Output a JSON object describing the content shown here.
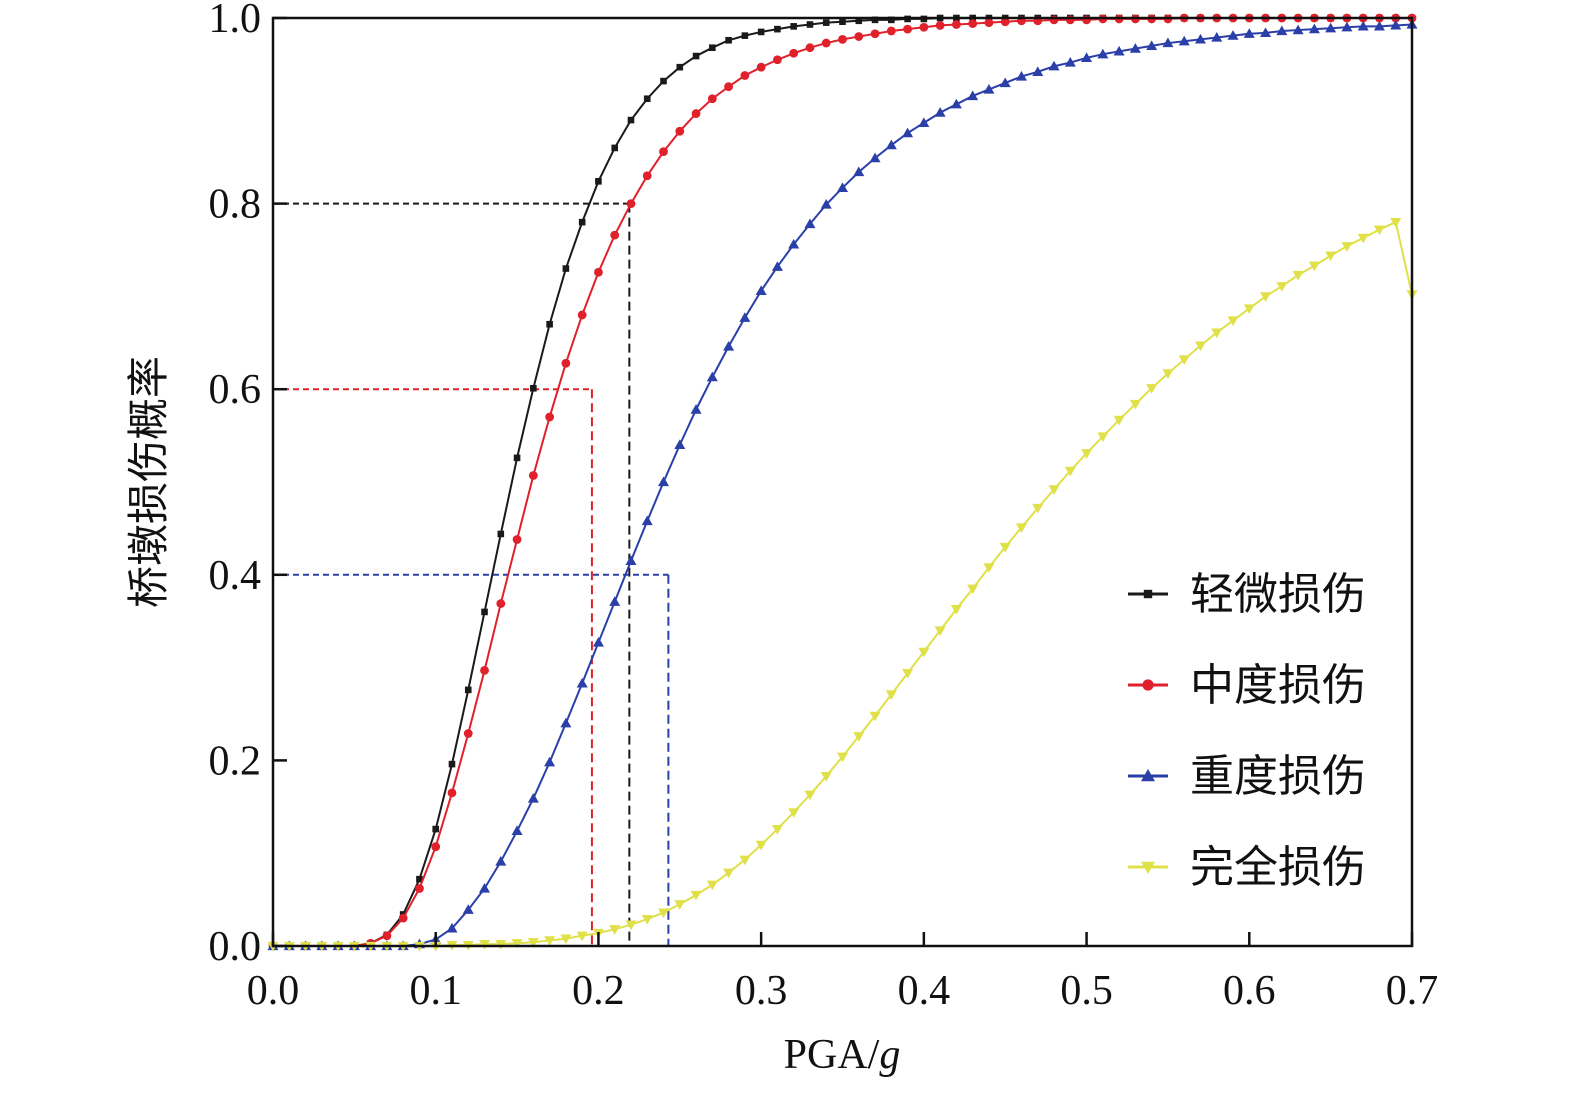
{
  "chart_data": {
    "type": "line",
    "xlabel": "PGA/g",
    "xlabel_main": "PGA/",
    "xlabel_italic": "g",
    "ylabel": "桥墩损伤概率",
    "xlim": [
      0,
      0.7
    ],
    "ylim": [
      0,
      1
    ],
    "xticks": [
      "0.0",
      "0.1",
      "0.2",
      "0.3",
      "0.4",
      "0.5",
      "0.6",
      "0.7"
    ],
    "yticks": [
      "0.0",
      "0.2",
      "0.4",
      "0.6",
      "0.8",
      "1.0"
    ],
    "legend_position": "bottom-right",
    "x_step": 0.01,
    "series": [
      {
        "name": "轻微损伤",
        "color": "#1a1a1a",
        "marker": "square",
        "values": [
          0.0,
          0.0,
          0.0,
          0.0,
          0.0,
          0.0,
          0.003,
          0.012,
          0.034,
          0.072,
          0.126,
          0.196,
          0.276,
          0.36,
          0.444,
          0.526,
          0.601,
          0.67,
          0.73,
          0.78,
          0.824,
          0.86,
          0.89,
          0.913,
          0.932,
          0.947,
          0.959,
          0.968,
          0.976,
          0.981,
          0.985,
          0.988,
          0.991,
          0.993,
          0.995,
          0.996,
          0.997,
          0.998,
          0.998,
          0.999,
          0.999,
          1.0,
          1.0,
          1.0,
          1.0,
          1.0,
          1.0,
          1.0,
          1.0,
          1.0,
          1.0,
          1.0,
          1.0,
          1.0,
          1.0,
          1.0,
          1.0,
          1.0,
          1.0,
          1.0,
          1.0,
          1.0,
          1.0,
          1.0,
          1.0,
          1.0,
          1.0,
          1.0,
          1.0,
          1.0,
          1.0
        ]
      },
      {
        "name": "中度损伤",
        "color": "#e0202a",
        "marker": "circle",
        "values": [
          0.0,
          0.0,
          0.0,
          0.0,
          0.0,
          0.0,
          0.003,
          0.011,
          0.03,
          0.062,
          0.107,
          0.165,
          0.229,
          0.297,
          0.369,
          0.438,
          0.507,
          0.57,
          0.628,
          0.68,
          0.726,
          0.766,
          0.8,
          0.83,
          0.856,
          0.878,
          0.897,
          0.913,
          0.926,
          0.938,
          0.947,
          0.955,
          0.962,
          0.968,
          0.973,
          0.977,
          0.98,
          0.983,
          0.986,
          0.988,
          0.99,
          0.992,
          0.993,
          0.994,
          0.995,
          0.996,
          0.997,
          0.997,
          0.998,
          0.998,
          0.998,
          0.999,
          0.999,
          0.999,
          0.999,
          0.999,
          1.0,
          1.0,
          1.0,
          1.0,
          1.0,
          1.0,
          1.0,
          1.0,
          1.0,
          1.0,
          1.0,
          1.0,
          1.0,
          1.0,
          1.0
        ]
      },
      {
        "name": "重度损伤",
        "color": "#2b3fa8",
        "marker": "triangle-up",
        "values": [
          0.0,
          0.0,
          0.0,
          0.0,
          0.0,
          0.0,
          0.0,
          0.0,
          0.0,
          0.002,
          0.007,
          0.019,
          0.039,
          0.062,
          0.091,
          0.124,
          0.159,
          0.198,
          0.24,
          0.283,
          0.327,
          0.371,
          0.415,
          0.458,
          0.5,
          0.54,
          0.578,
          0.613,
          0.646,
          0.677,
          0.706,
          0.732,
          0.756,
          0.778,
          0.799,
          0.817,
          0.834,
          0.849,
          0.863,
          0.876,
          0.887,
          0.898,
          0.907,
          0.916,
          0.923,
          0.93,
          0.937,
          0.942,
          0.948,
          0.952,
          0.957,
          0.961,
          0.964,
          0.967,
          0.97,
          0.973,
          0.975,
          0.977,
          0.979,
          0.981,
          0.983,
          0.984,
          0.986,
          0.987,
          0.988,
          0.989,
          0.99,
          0.991,
          0.991,
          0.992,
          0.993
        ]
      },
      {
        "name": "完全损伤",
        "color": "#e0e048",
        "marker": "triangle-down",
        "values": [
          0.0,
          0.0,
          0.0,
          0.0,
          0.0,
          0.0,
          0.0,
          0.0,
          0.0,
          0.0,
          0.0,
          0.001,
          0.001,
          0.002,
          0.002,
          0.003,
          0.004,
          0.006,
          0.008,
          0.011,
          0.014,
          0.018,
          0.023,
          0.029,
          0.036,
          0.045,
          0.055,
          0.066,
          0.079,
          0.093,
          0.109,
          0.126,
          0.144,
          0.163,
          0.183,
          0.204,
          0.226,
          0.248,
          0.271,
          0.294,
          0.317,
          0.34,
          0.363,
          0.385,
          0.408,
          0.43,
          0.451,
          0.472,
          0.492,
          0.512,
          0.531,
          0.549,
          0.567,
          0.584,
          0.601,
          0.617,
          0.632,
          0.647,
          0.661,
          0.674,
          0.687,
          0.7,
          0.711,
          0.723,
          0.733,
          0.744,
          0.754,
          0.763,
          0.772,
          0.78,
          0.702
        ]
      }
    ],
    "reference_lines": [
      {
        "y": 0.8,
        "x": 0.219,
        "color": "#1a1a1a"
      },
      {
        "y": 0.6,
        "x": 0.196,
        "color": "#e0202a"
      },
      {
        "y": 0.4,
        "x": 0.243,
        "color": "#2b3fa8"
      }
    ]
  }
}
